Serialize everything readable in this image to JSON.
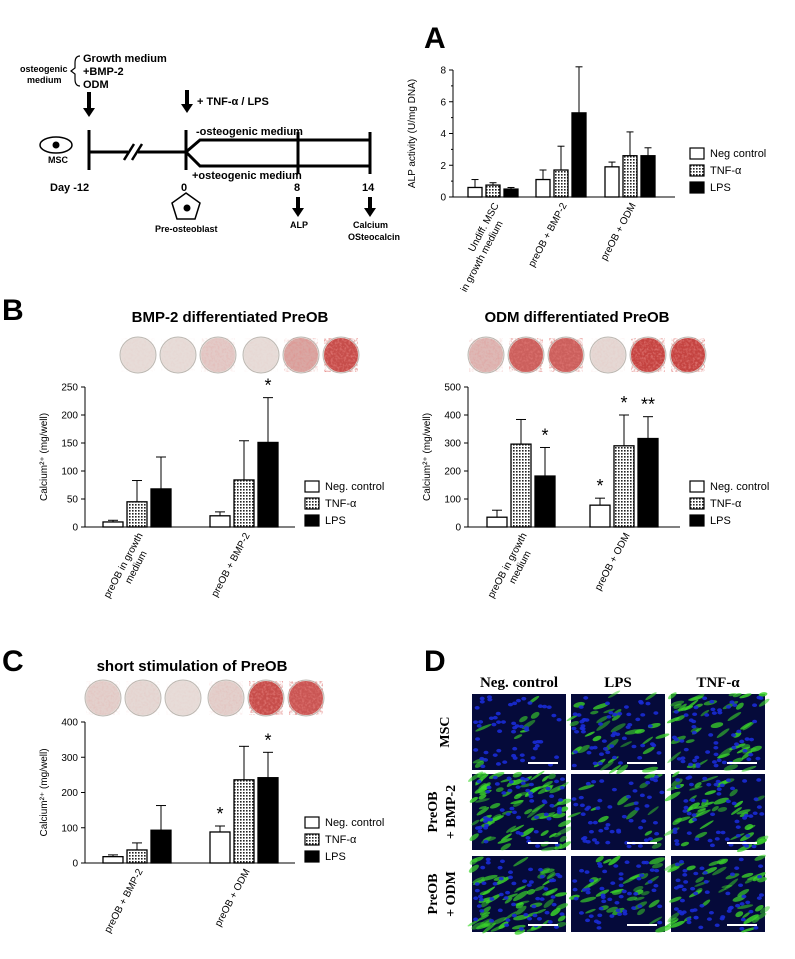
{
  "panel_letters": {
    "a": "A",
    "b": "B",
    "c": "C",
    "d": "D"
  },
  "timeline": {
    "osteogenic_medium_1": "osteogenic",
    "osteogenic_medium_2": "medium",
    "growth_medium": "Growth medium",
    "bmp2": "+BMP-2",
    "odm": "ODM",
    "tnf_lps": "+ TNF-α / LPS",
    "minus_osteogenic": "-osteogenic medium",
    "plus_osteogenic": "+osteogenic medium",
    "msc": "MSC",
    "day": "Day -12",
    "day0": "0",
    "day8": "8",
    "day14": "14",
    "preosteoblast": "Pre-osteoblast",
    "alp": "ALP",
    "calcium": "Calcium",
    "osteocalcin": "OSteocalcin"
  },
  "titles": {
    "b_left": "BMP-2 differentiated PreOB",
    "b_right": "ODM differentiated PreOB",
    "c": "short stimulation of PreOB"
  },
  "chart_data": [
    {
      "id": "A",
      "type": "bar",
      "ylabel": "ALP activity (U/mg DNA)",
      "ylim": [
        0,
        8
      ],
      "yticks": [
        0,
        2,
        4,
        6,
        8
      ],
      "categories": [
        "Undiff. MSC in growth medium",
        "preOB + BMP-2",
        "preOB + ODM"
      ],
      "category_lines": [
        [
          "Undiff. MSC",
          "in growth medium"
        ],
        [
          "preOB + BMP-2"
        ],
        [
          "preOB + ODM"
        ]
      ],
      "series": [
        {
          "name": "Neg control",
          "values": [
            0.6,
            1.1,
            1.9
          ],
          "errors": [
            0.5,
            0.6,
            0.3
          ]
        },
        {
          "name": "TNF-α",
          "values": [
            0.75,
            1.7,
            2.6
          ],
          "errors": [
            0.15,
            1.5,
            1.5
          ]
        },
        {
          "name": "LPS",
          "values": [
            0.5,
            5.3,
            2.6
          ],
          "errors": [
            0.1,
            2.9,
            0.5
          ]
        }
      ],
      "significance": [
        "",
        "",
        "",
        "",
        "",
        "",
        "",
        "",
        ""
      ]
    },
    {
      "id": "B-left",
      "type": "bar",
      "ylabel": "Calcium²⁺ (mg/well)",
      "ylim": [
        0,
        250
      ],
      "yticks": [
        0,
        50,
        100,
        150,
        200,
        250
      ],
      "categories": [
        "preOB in growth medium",
        "preOB + BMP-2"
      ],
      "category_lines": [
        [
          "preOB in growth",
          "medium"
        ],
        [
          "preOB + BMP-2"
        ]
      ],
      "series": [
        {
          "name": "Neg. control",
          "values": [
            9,
            20
          ],
          "errors": [
            3,
            7
          ]
        },
        {
          "name": "TNF-α",
          "values": [
            45,
            84
          ],
          "errors": [
            38,
            70
          ]
        },
        {
          "name": "LPS",
          "values": [
            68,
            151
          ],
          "errors": [
            57,
            80
          ]
        }
      ],
      "significance": [
        "",
        "",
        "",
        "",
        "",
        "*"
      ]
    },
    {
      "id": "B-right",
      "type": "bar",
      "ylabel": "Calcium²⁺ (mg/well)",
      "ylim": [
        0,
        500
      ],
      "yticks": [
        0,
        100,
        200,
        300,
        400,
        500
      ],
      "categories": [
        "preOB in growth medium",
        "preOB + ODM"
      ],
      "category_lines": [
        [
          "preOB in growth",
          "medium"
        ],
        [
          "preOB + ODM"
        ]
      ],
      "series": [
        {
          "name": "Neg. control",
          "values": [
            35,
            78
          ],
          "errors": [
            25,
            25
          ]
        },
        {
          "name": "TNF-α",
          "values": [
            296,
            290
          ],
          "errors": [
            88,
            110
          ]
        },
        {
          "name": "LPS",
          "values": [
            182,
            316
          ],
          "errors": [
            102,
            78
          ]
        }
      ],
      "significance": [
        "",
        "",
        "*",
        "*",
        "*",
        "**"
      ]
    },
    {
      "id": "C",
      "type": "bar",
      "ylabel": "Calcium²⁺ (mg/well)",
      "ylim": [
        0,
        400
      ],
      "yticks": [
        0,
        100,
        200,
        300,
        400
      ],
      "categories": [
        "preOB + BMP-2",
        "preOB + ODM"
      ],
      "category_lines": [
        [
          "preOB + BMP-2"
        ],
        [
          "preOB + ODM"
        ]
      ],
      "series": [
        {
          "name": "Neg. control",
          "values": [
            18,
            88
          ],
          "errors": [
            5,
            17
          ]
        },
        {
          "name": "TNF-α",
          "values": [
            37,
            236
          ],
          "errors": [
            20,
            95
          ]
        },
        {
          "name": "LPS",
          "values": [
            93,
            242
          ],
          "errors": [
            70,
            72
          ]
        }
      ],
      "significance": [
        "",
        "",
        "",
        "*",
        "",
        "*"
      ]
    }
  ],
  "microscopy": {
    "columns": [
      "Neg. control",
      "LPS",
      "TNF-α"
    ],
    "rows": [
      [
        "MSC"
      ],
      [
        "PreOB",
        "+ BMP-2"
      ],
      [
        "PreOB",
        "+ ODM"
      ]
    ],
    "colors": {
      "nuclei": "#1a2bd6",
      "green": "#3bd62a",
      "background": "#050a3a"
    }
  },
  "colors": {
    "bar_neg": "#ffffff",
    "bar_lps": "#000000",
    "stain_red": "#c0312f",
    "stain_bg": "#e9e6e2"
  }
}
